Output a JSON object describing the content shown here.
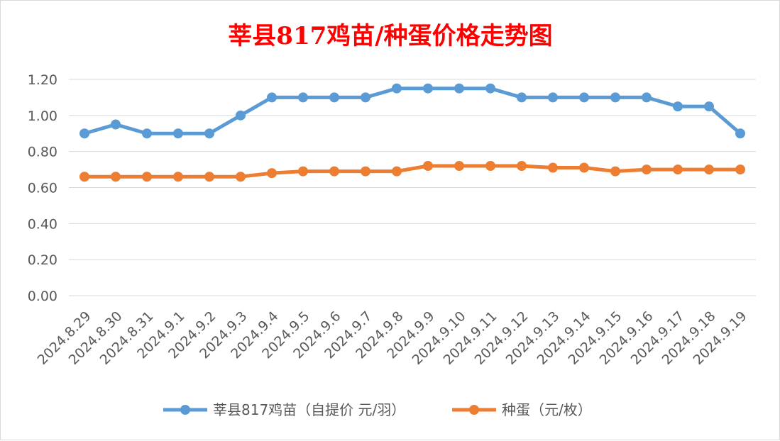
{
  "chart_data": {
    "type": "line",
    "title": "莘县817鸡苗/种蛋价格走势图",
    "categories": [
      "2024.8.29",
      "2024.8.30",
      "2024.8.31",
      "2024.9.1",
      "2024.9.2",
      "2024.9.3",
      "2024.9.4",
      "2024.9.5",
      "2024.9.6",
      "2024.9.7",
      "2024.9.8",
      "2024.9.9",
      "2024.9.10",
      "2024.9.11",
      "2024.9.12",
      "2024.9.13",
      "2024.9.14",
      "2024.9.15",
      "2024.9.16",
      "2024.9.17",
      "2024.9.18",
      "2024.9.19"
    ],
    "series": [
      {
        "name": "莘县817鸡苗（自提价 元/羽）",
        "color": "#5b9bd5",
        "values": [
          0.9,
          0.95,
          0.9,
          0.9,
          0.9,
          1.0,
          1.1,
          1.1,
          1.1,
          1.1,
          1.15,
          1.15,
          1.15,
          1.15,
          1.1,
          1.1,
          1.1,
          1.1,
          1.1,
          1.05,
          1.05,
          0.9
        ]
      },
      {
        "name": "种蛋（元/枚）",
        "color": "#ed7d31",
        "values": [
          0.66,
          0.66,
          0.66,
          0.66,
          0.66,
          0.66,
          0.68,
          0.69,
          0.69,
          0.69,
          0.69,
          0.72,
          0.72,
          0.72,
          0.72,
          0.71,
          0.71,
          0.69,
          0.7,
          0.7,
          0.7,
          0.7
        ]
      }
    ],
    "yticks": [
      "0.00",
      "0.20",
      "0.40",
      "0.60",
      "0.80",
      "1.00",
      "1.20"
    ],
    "ylim": [
      0,
      1.2
    ],
    "grid": true,
    "legend_position": "bottom",
    "title_color": "#ff0000",
    "gridline_color": "#d9d9d9",
    "text_color": "#595959"
  }
}
